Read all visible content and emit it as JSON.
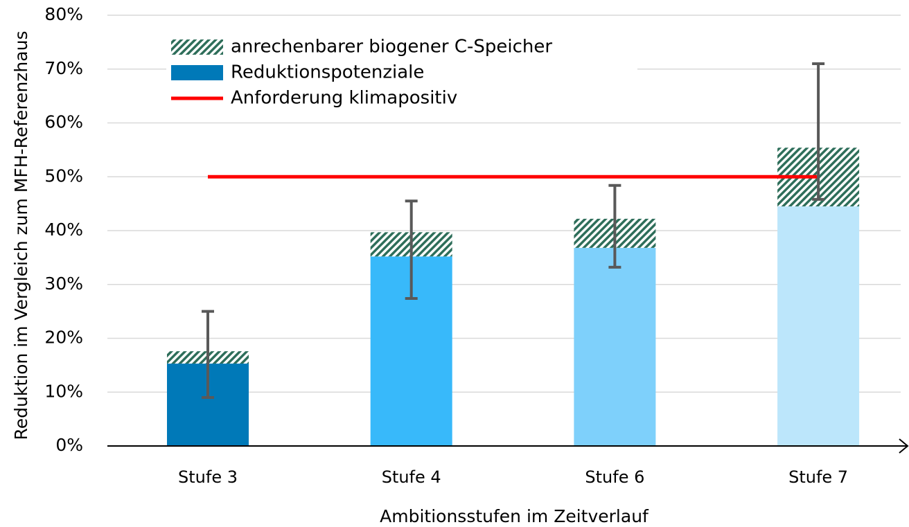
{
  "chart_data": {
    "type": "bar",
    "x_label": "Ambitionsstufen im Zeitverlauf",
    "y_label": "Reduktion im Vergleich zum MFH-Referenzhaus",
    "categories": [
      "Stufe 3",
      "Stufe 4",
      "Stufe 6",
      "Stufe 7"
    ],
    "series": [
      {
        "name": "anrechenbarer biogener C-Speicher",
        "color": "#2e6e5a",
        "pattern": "hatch",
        "values": [
          2.3,
          4.5,
          5.4,
          10.9
        ]
      },
      {
        "name": "Reduktionspotenziale",
        "color": "#0079b8",
        "colors": [
          "#0079b8",
          "#38b9fa",
          "#7ed0fb",
          "#bce6fb"
        ],
        "values": [
          15.3,
          35.2,
          36.8,
          44.5
        ]
      },
      {
        "name": "Anforderung klimapositiv",
        "type": "line",
        "color": "#ff0000",
        "values": [
          50,
          50,
          50,
          50
        ]
      }
    ],
    "error_high": [
      25,
      45.5,
      48.4,
      71
    ],
    "error_low": [
      9,
      27.4,
      33.2,
      45.8
    ],
    "error_color": "#595959",
    "ylim": [
      0,
      80
    ],
    "yticks": [
      {
        "value": 0,
        "label": "0%"
      },
      {
        "value": 10,
        "label": "10%"
      },
      {
        "value": 20,
        "label": "20%"
      },
      {
        "value": 30,
        "label": "30%"
      },
      {
        "value": 40,
        "label": "40%"
      },
      {
        "value": 50,
        "label": "50%"
      },
      {
        "value": 60,
        "label": "60%"
      },
      {
        "value": 70,
        "label": "70%"
      },
      {
        "value": 80,
        "label": "80%"
      }
    ],
    "grid": true,
    "legend": "upper left"
  }
}
